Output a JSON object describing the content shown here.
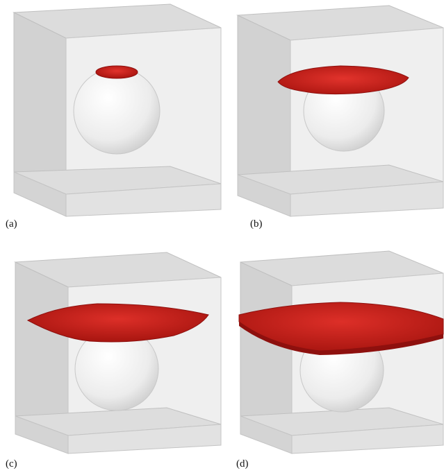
{
  "panels": [
    {
      "label": "(a)"
    },
    {
      "label": "(b)"
    },
    {
      "label": "(c)"
    },
    {
      "label": "(d)"
    }
  ],
  "colors": {
    "box_face": "#d6d6d6",
    "box_edge": "#bdbdbd",
    "box_inner": "#ededed",
    "sphere_light": "#ffffff",
    "sphere_dark": "#cfcfcf",
    "film_red": "#c8201c",
    "film_dark": "#8e100e"
  }
}
